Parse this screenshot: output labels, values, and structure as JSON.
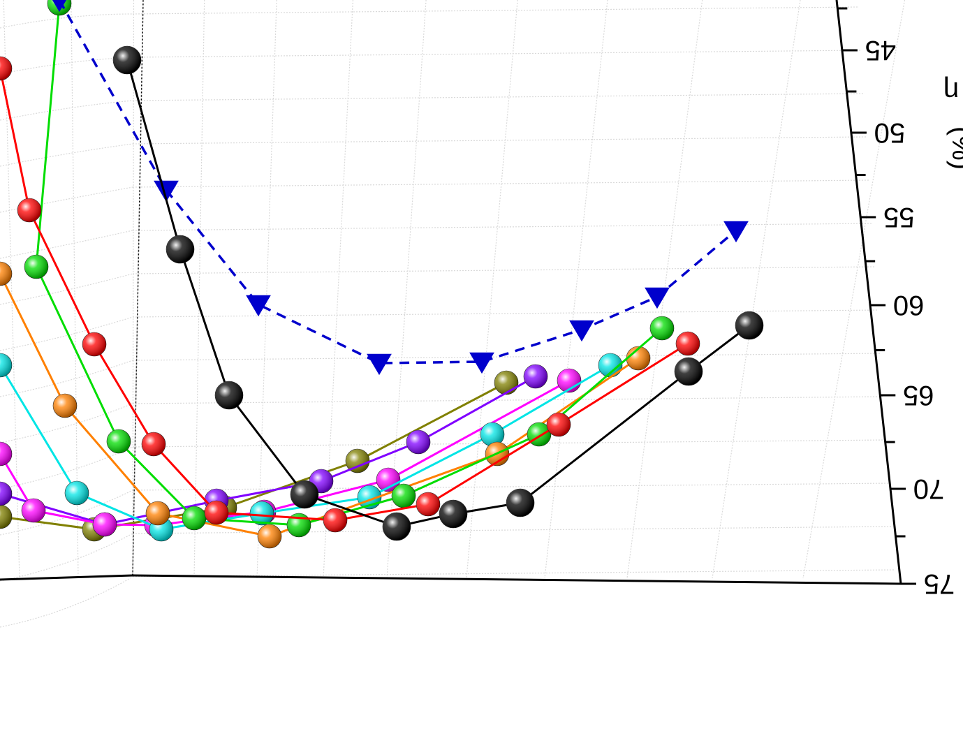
{
  "chart_data": {
    "type": "line",
    "view": "3d-perspective, image rendered rotated 180 degrees",
    "title": "",
    "right_axis": {
      "label_symbol": "η",
      "label_unit": "(%)",
      "ticks": [
        {
          "value": 45,
          "label": "45"
        },
        {
          "value": 50,
          "label": "50"
        },
        {
          "value": 55,
          "label": "55"
        },
        {
          "value": 60,
          "label": "60"
        },
        {
          "value": 65,
          "label": "65"
        },
        {
          "value": 70,
          "label": "70"
        },
        {
          "value": 75,
          "label": "75"
        }
      ]
    },
    "grid": true,
    "series": [
      {
        "color": "#000000",
        "marker": "sphere",
        "points": [
          [
            182,
            86
          ],
          [
            258,
            357
          ],
          [
            328,
            566
          ],
          [
            436,
            708
          ],
          [
            568,
            754
          ],
          [
            649,
            736
          ],
          [
            745,
            720
          ],
          [
            986,
            532
          ],
          [
            1073,
            466
          ]
        ]
      },
      {
        "color": "#0000cc",
        "marker": "triangle",
        "dashed": true,
        "points": [
          [
            85,
            0
          ],
          [
            238,
            272
          ],
          [
            370,
            436
          ],
          [
            543,
            520
          ],
          [
            690,
            518
          ],
          [
            833,
            472
          ],
          [
            941,
            425
          ],
          [
            1054,
            330
          ]
        ]
      },
      {
        "color": "#ff0000",
        "marker": "sphere",
        "points": [
          [
            0,
            98
          ],
          [
            42,
            301
          ],
          [
            135,
            493
          ],
          [
            220,
            636
          ],
          [
            310,
            734
          ],
          [
            480,
            745
          ],
          [
            613,
            722
          ],
          [
            800,
            608
          ],
          [
            985,
            492
          ]
        ]
      },
      {
        "color": "#00dd00",
        "marker": "sphere",
        "points": [
          [
            85,
            5
          ],
          [
            52,
            382
          ],
          [
            170,
            632
          ],
          [
            278,
            742
          ],
          [
            428,
            752
          ],
          [
            578,
            710
          ],
          [
            772,
            622
          ],
          [
            948,
            470
          ]
        ]
      },
      {
        "color": "#ff8000",
        "marker": "sphere",
        "points": [
          [
            0,
            392
          ],
          [
            93,
            581
          ],
          [
            226,
            735
          ],
          [
            386,
            768
          ],
          [
            712,
            650
          ],
          [
            914,
            513
          ]
        ]
      },
      {
        "color": "#00e5e5",
        "marker": "sphere",
        "points": [
          [
            0,
            523
          ],
          [
            110,
            706
          ],
          [
            231,
            758
          ],
          [
            375,
            735
          ],
          [
            529,
            712
          ],
          [
            705,
            622
          ],
          [
            874,
            523
          ]
        ]
      },
      {
        "color": "#ff00ff",
        "marker": "sphere",
        "points": [
          [
            0,
            650
          ],
          [
            48,
            731
          ],
          [
            150,
            751
          ],
          [
            224,
            752
          ],
          [
            378,
            733
          ],
          [
            556,
            687
          ],
          [
            815,
            545
          ]
        ]
      },
      {
        "color": "#8000ff",
        "marker": "sphere",
        "points": [
          [
            0,
            707
          ],
          [
            150,
            751
          ],
          [
            310,
            717
          ],
          [
            460,
            689
          ],
          [
            599,
            633
          ],
          [
            767,
            539
          ]
        ]
      },
      {
        "color": "#808000",
        "marker": "sphere",
        "points": [
          [
            0,
            740
          ],
          [
            135,
            758
          ],
          [
            322,
            727
          ],
          [
            512,
            660
          ],
          [
            725,
            548
          ]
        ]
      }
    ]
  }
}
